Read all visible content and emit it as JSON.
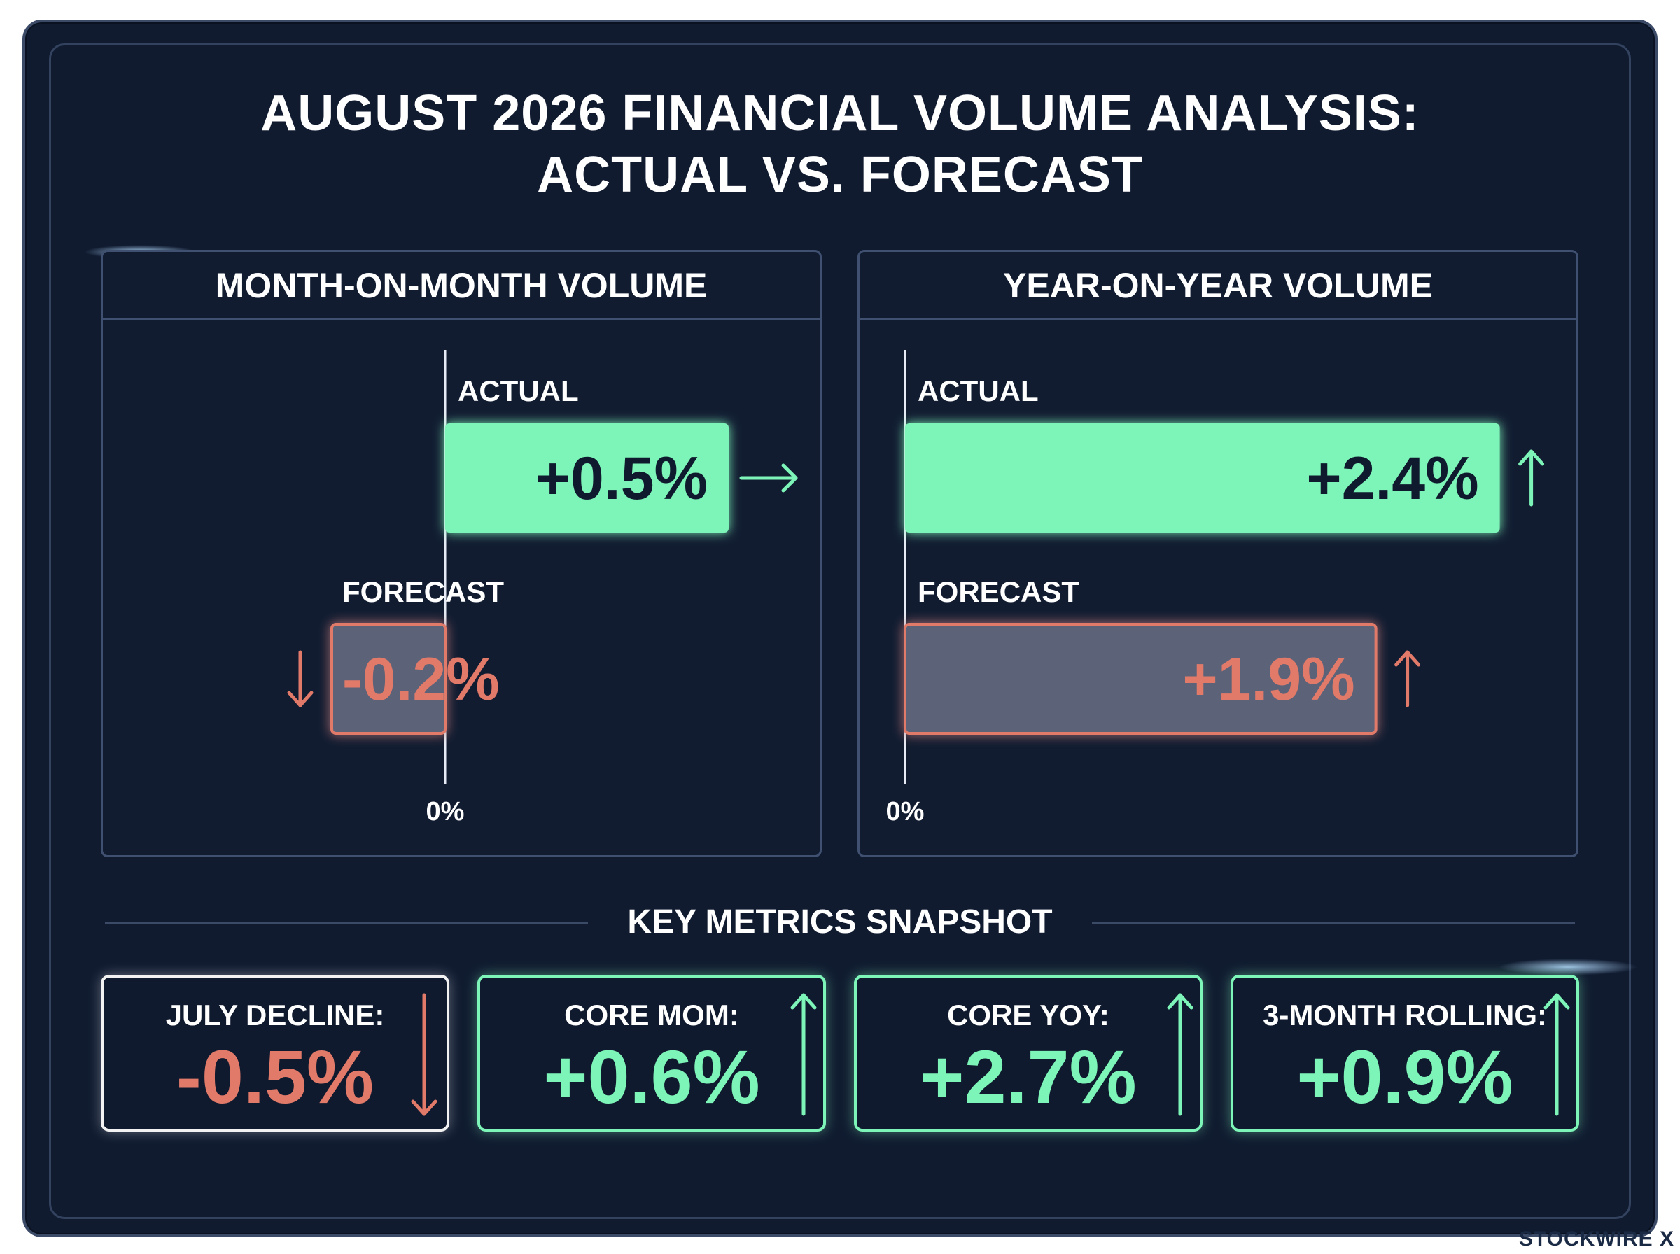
{
  "title_lines": [
    "AUGUST 2026 FINANCIAL VOLUME ANALYSIS:",
    "ACTUAL VS. FORECAST"
  ],
  "colors": {
    "background": "#101b30",
    "positive": "#7ef5b8",
    "negative": "#e27a6a",
    "forecast_fill": "#5c6478",
    "text": "#ffffff"
  },
  "chart_data": [
    {
      "type": "bar",
      "title": "MONTH-ON-MONTH VOLUME",
      "orientation": "horizontal",
      "zero_label": "0%",
      "bars": [
        {
          "label": "ACTUAL",
          "value": 0.5,
          "display": "+0.5%",
          "trend_icon": "arrow-right-icon",
          "color": "#7ef5b8"
        },
        {
          "label": "FORECAST",
          "value": -0.2,
          "display": "-0.2%",
          "trend_icon": "arrow-down-icon",
          "color": "#e27a6a"
        }
      ]
    },
    {
      "type": "bar",
      "title": "YEAR-ON-YEAR VOLUME",
      "orientation": "horizontal",
      "zero_label": "0%",
      "bars": [
        {
          "label": "ACTUAL",
          "value": 2.4,
          "display": "+2.4%",
          "trend_icon": "arrow-up-icon",
          "color": "#7ef5b8"
        },
        {
          "label": "FORECAST",
          "value": 1.9,
          "display": "+1.9%",
          "trend_icon": "arrow-up-icon",
          "color": "#e27a6a"
        }
      ]
    }
  ],
  "snapshot": {
    "title": "KEY METRICS SNAPSHOT",
    "metrics": [
      {
        "label": "JULY DECLINE:",
        "value": "-0.5%",
        "direction": "down",
        "icon": "arrow-down-icon",
        "color": "#e27a6a"
      },
      {
        "label": "CORE MOM:",
        "value": "+0.6%",
        "direction": "up",
        "icon": "arrow-up-icon",
        "color": "#7ef5b8"
      },
      {
        "label": "CORE YOY:",
        "value": "+2.7%",
        "direction": "up",
        "icon": "arrow-up-icon",
        "color": "#7ef5b8"
      },
      {
        "label": "3-MONTH ROLLING:",
        "value": "+0.9%",
        "direction": "up",
        "icon": "arrow-up-icon",
        "color": "#7ef5b8"
      }
    ]
  },
  "brand": "STOCKWIRE X"
}
